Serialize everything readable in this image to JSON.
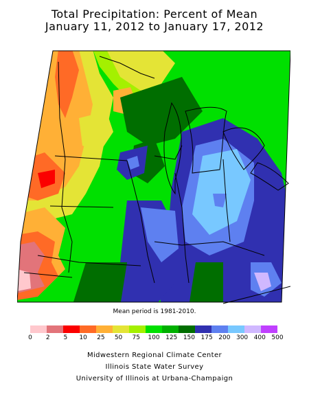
{
  "header": {
    "title_line1": "Total Precipitation: Percent of Mean",
    "title_line2": "January 11, 2012 to January 17, 2012"
  },
  "map": {
    "region": "Midwestern United States",
    "background_color": "#ffffff",
    "outline_color": "#000000",
    "mean_period_note": "Mean period is 1981-2010."
  },
  "legend": {
    "colors": [
      "#ffc8cd",
      "#e2747a",
      "#fb0000",
      "#ff6a26",
      "#ffb036",
      "#e4e436",
      "#a4f000",
      "#00e000",
      "#00b000",
      "#006e00",
      "#3030b0",
      "#5e80f0",
      "#78c8ff",
      "#d0b8ff",
      "#c040ff"
    ],
    "ticks": [
      "0",
      "2",
      "5",
      "10",
      "25",
      "50",
      "75",
      "100",
      "125",
      "150",
      "175",
      "200",
      "300",
      "400",
      "500"
    ]
  },
  "footer": {
    "line1": "Midwestern Regional Climate Center",
    "line2": "Illinois State Water Survey",
    "line3": "University of Illinois at Urbana-Champaign"
  }
}
